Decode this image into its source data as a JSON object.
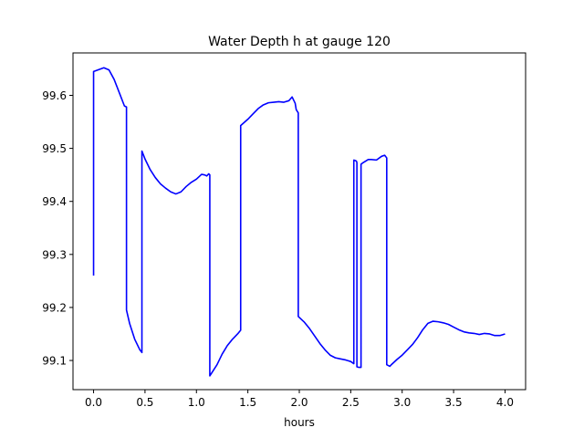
{
  "chart_data": {
    "type": "line",
    "title": "Water Depth h at gauge 120",
    "xlabel": "hours",
    "ylabel": "",
    "xlim": [
      -0.2,
      4.2
    ],
    "ylim": [
      99.045,
      99.68
    ],
    "grid": false,
    "legend": "none",
    "xticks": [
      0.0,
      0.5,
      1.0,
      1.5,
      2.0,
      2.5,
      3.0,
      3.5,
      4.0
    ],
    "xtick_labels": [
      "0.0",
      "0.5",
      "1.0",
      "1.5",
      "2.0",
      "2.5",
      "3.0",
      "3.5",
      "4.0"
    ],
    "yticks": [
      99.1,
      99.2,
      99.3,
      99.4,
      99.5,
      99.6
    ],
    "ytick_labels": [
      "99.1",
      "99.2",
      "99.3",
      "99.4",
      "99.5",
      "99.6"
    ],
    "series": [
      {
        "color": "#0000ff",
        "x": [
          0.0,
          0.0,
          0.1,
          0.15,
          0.2,
          0.25,
          0.3,
          0.32,
          0.32,
          0.35,
          0.4,
          0.45,
          0.47,
          0.47,
          0.5,
          0.55,
          0.6,
          0.65,
          0.7,
          0.75,
          0.8,
          0.85,
          0.9,
          0.95,
          1.0,
          1.05,
          1.08,
          1.1,
          1.12,
          1.13,
          1.13,
          1.2,
          1.25,
          1.3,
          1.35,
          1.4,
          1.43,
          1.43,
          1.5,
          1.55,
          1.6,
          1.65,
          1.7,
          1.75,
          1.8,
          1.85,
          1.9,
          1.93,
          1.96,
          1.97,
          1.99,
          1.99,
          2.05,
          2.1,
          2.15,
          2.2,
          2.25,
          2.3,
          2.35,
          2.4,
          2.45,
          2.5,
          2.53,
          2.53,
          2.555,
          2.56,
          2.56,
          2.58,
          2.6,
          2.6,
          2.62,
          2.67,
          2.7,
          2.75,
          2.8,
          2.83,
          2.85,
          2.85,
          2.88,
          2.9,
          2.95,
          3.0,
          3.05,
          3.1,
          3.15,
          3.2,
          3.25,
          3.3,
          3.35,
          3.4,
          3.45,
          3.5,
          3.55,
          3.6,
          3.65,
          3.7,
          3.75,
          3.8,
          3.85,
          3.9,
          3.95,
          4.0
        ],
        "y": [
          99.26,
          99.645,
          99.652,
          99.648,
          99.63,
          99.605,
          99.58,
          99.578,
          99.195,
          99.17,
          99.14,
          99.12,
          99.115,
          99.495,
          99.48,
          99.46,
          99.445,
          99.433,
          99.425,
          99.418,
          99.414,
          99.418,
          99.428,
          99.436,
          99.442,
          99.451,
          99.45,
          99.448,
          99.452,
          99.45,
          99.071,
          99.092,
          99.112,
          99.128,
          99.14,
          99.15,
          99.157,
          99.543,
          99.555,
          99.565,
          99.575,
          99.582,
          99.586,
          99.587,
          99.588,
          99.587,
          99.59,
          99.597,
          99.585,
          99.573,
          99.567,
          99.183,
          99.172,
          99.16,
          99.146,
          99.132,
          99.12,
          99.11,
          99.105,
          99.103,
          99.101,
          99.098,
          99.094,
          99.478,
          99.476,
          99.473,
          99.088,
          99.087,
          99.087,
          99.47,
          99.473,
          99.479,
          99.479,
          99.478,
          99.485,
          99.487,
          99.482,
          99.092,
          99.089,
          99.093,
          99.102,
          99.11,
          99.12,
          99.13,
          99.143,
          99.158,
          99.17,
          99.174,
          99.173,
          99.171,
          99.168,
          99.163,
          99.158,
          99.154,
          99.152,
          99.151,
          99.149,
          99.151,
          99.15,
          99.147,
          99.147,
          99.15
        ]
      }
    ]
  }
}
